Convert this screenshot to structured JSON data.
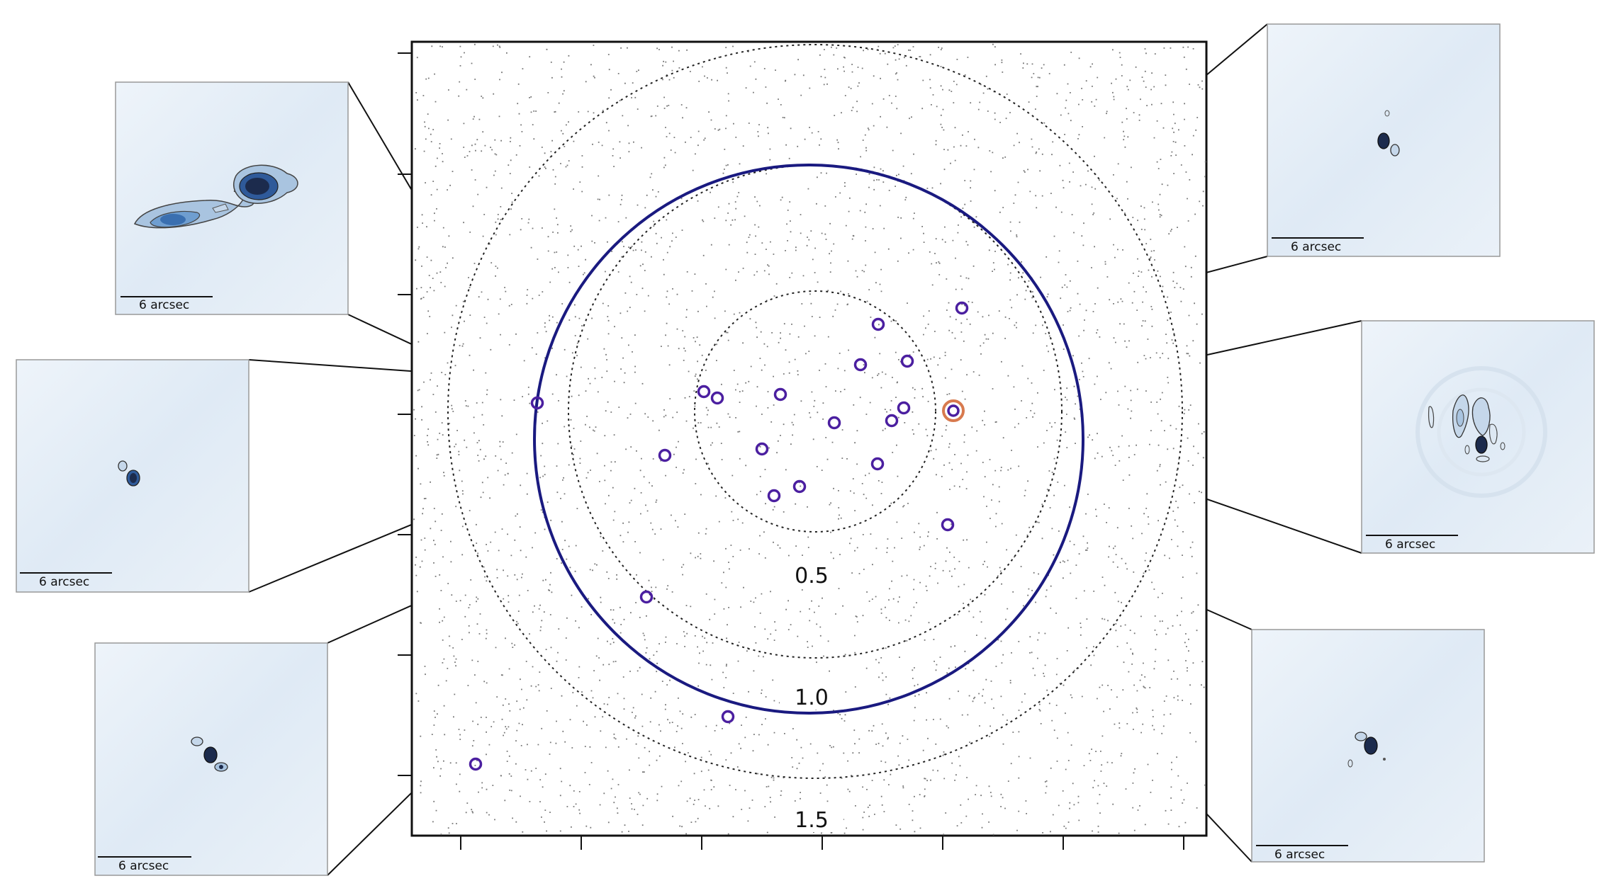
{
  "figure": {
    "colors": {
      "frame": "#111111",
      "dots": "#777777",
      "dotted_circles": "#222222",
      "main_circle": "#1a1a80",
      "source_markers": "#4b1fa0",
      "highlight_marker": "#d87a4e",
      "connector_lines": "#111111",
      "thumbnail_background": "#e9f1f8",
      "contour_fill_dark": "#1c2b4d",
      "contour_fill_mid": "#3a6fb0",
      "contour_line": "#444444"
    },
    "radius_labels": [
      "0.5",
      "1.0",
      "1.5"
    ],
    "thumbnails": [
      {
        "id": "upper-left-double-lobe",
        "scale_label": "6 arcsec",
        "icon": "extended-double-lobe-source"
      },
      {
        "id": "mid-left-compact",
        "scale_label": "6 arcsec",
        "icon": "compact-double-source"
      },
      {
        "id": "lower-left-triple",
        "scale_label": "6 arcsec",
        "icon": "compact-triple-source"
      },
      {
        "id": "upper-right-compact",
        "scale_label": "6 arcsec",
        "icon": "compact-source-with-companion"
      },
      {
        "id": "mid-right-extended",
        "scale_label": "6 arcsec",
        "icon": "extended-jet-source"
      },
      {
        "id": "lower-right-compact",
        "scale_label": "6 arcsec",
        "icon": "compact-core-with-knots"
      }
    ]
  }
}
